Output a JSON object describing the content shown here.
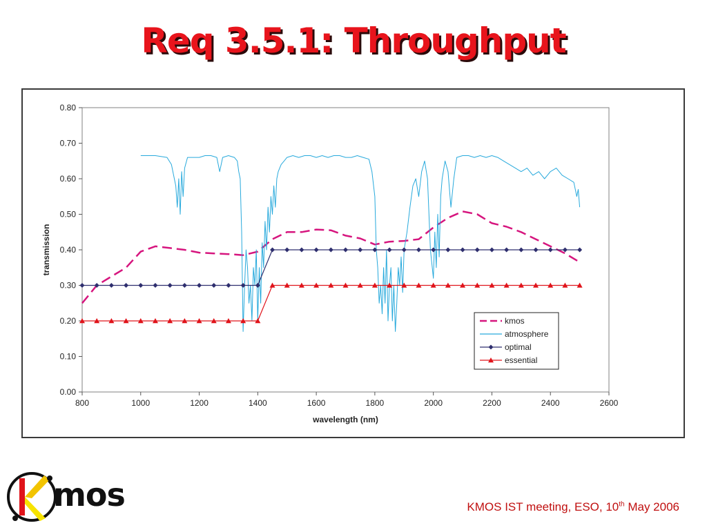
{
  "slide": {
    "title": "Req 3.5.1: Throughput",
    "footer_main": "KMOS IST meeting, ESO, 10",
    "footer_sup": "th",
    "footer_end": " May 2006",
    "logo_text": "mos",
    "logo_letter": "K"
  },
  "chart_data": {
    "type": "line",
    "xlabel": "wavelength (nm)",
    "ylabel": "transmission",
    "xlim": [
      800,
      2600
    ],
    "ylim": [
      0,
      0.8
    ],
    "xticks": [
      800,
      1000,
      1200,
      1400,
      1600,
      1800,
      2000,
      2200,
      2400,
      2600
    ],
    "yticks": [
      "0.00",
      "0.10",
      "0.20",
      "0.30",
      "0.40",
      "0.50",
      "0.60",
      "0.70",
      "0.80"
    ],
    "legend_position": "lower-right",
    "series": [
      {
        "name": "kmos",
        "color": "#d6157e",
        "style": "dashed",
        "x": [
          800,
          850,
          900,
          950,
          1000,
          1050,
          1100,
          1150,
          1200,
          1250,
          1300,
          1350,
          1400,
          1450,
          1500,
          1550,
          1600,
          1650,
          1700,
          1750,
          1800,
          1850,
          1900,
          1950,
          2000,
          2050,
          2100,
          2150,
          2200,
          2250,
          2300,
          2350,
          2400,
          2450,
          2500
        ],
        "y": [
          0.25,
          0.3,
          0.325,
          0.35,
          0.395,
          0.41,
          0.405,
          0.4,
          0.392,
          0.39,
          0.388,
          0.385,
          0.395,
          0.43,
          0.45,
          0.45,
          0.457,
          0.455,
          0.44,
          0.432,
          0.415,
          0.423,
          0.425,
          0.43,
          0.463,
          0.49,
          0.508,
          0.5,
          0.475,
          0.465,
          0.45,
          0.43,
          0.41,
          0.39,
          0.365
        ]
      },
      {
        "name": "atmosphere",
        "color": "#27a9dc",
        "style": "solid",
        "x": [
          1000,
          1050,
          1090,
          1105,
          1115,
          1120,
          1125,
          1130,
          1135,
          1140,
          1145,
          1150,
          1160,
          1180,
          1200,
          1220,
          1240,
          1260,
          1265,
          1270,
          1280,
          1300,
          1320,
          1330,
          1335,
          1340,
          1345,
          1350,
          1355,
          1360,
          1365,
          1370,
          1375,
          1380,
          1385,
          1390,
          1395,
          1400,
          1405,
          1410,
          1415,
          1420,
          1425,
          1430,
          1435,
          1440,
          1445,
          1450,
          1455,
          1460,
          1465,
          1470,
          1480,
          1490,
          1500,
          1520,
          1540,
          1560,
          1580,
          1600,
          1620,
          1640,
          1660,
          1680,
          1700,
          1720,
          1740,
          1760,
          1780,
          1790,
          1800,
          1805,
          1810,
          1815,
          1820,
          1825,
          1830,
          1835,
          1840,
          1845,
          1850,
          1855,
          1860,
          1865,
          1870,
          1875,
          1880,
          1885,
          1890,
          1895,
          1900,
          1910,
          1920,
          1930,
          1940,
          1950,
          1960,
          1970,
          1980,
          1990,
          2000,
          2005,
          2010,
          2015,
          2020,
          2025,
          2030,
          2040,
          2050,
          2060,
          2070,
          2080,
          2100,
          2120,
          2140,
          2160,
          2180,
          2200,
          2220,
          2240,
          2260,
          2280,
          2300,
          2320,
          2340,
          2360,
          2380,
          2400,
          2420,
          2440,
          2460,
          2480,
          2490,
          2495,
          2500
        ],
        "y": [
          0.665,
          0.665,
          0.66,
          0.64,
          0.6,
          0.58,
          0.52,
          0.6,
          0.5,
          0.62,
          0.55,
          0.63,
          0.66,
          0.66,
          0.66,
          0.665,
          0.665,
          0.66,
          0.64,
          0.62,
          0.66,
          0.665,
          0.66,
          0.65,
          0.62,
          0.6,
          0.45,
          0.17,
          0.3,
          0.4,
          0.35,
          0.25,
          0.3,
          0.2,
          0.35,
          0.3,
          0.4,
          0.2,
          0.35,
          0.25,
          0.42,
          0.35,
          0.48,
          0.4,
          0.52,
          0.45,
          0.55,
          0.5,
          0.58,
          0.52,
          0.6,
          0.62,
          0.64,
          0.65,
          0.66,
          0.665,
          0.66,
          0.665,
          0.665,
          0.66,
          0.665,
          0.66,
          0.665,
          0.665,
          0.66,
          0.66,
          0.665,
          0.66,
          0.655,
          0.62,
          0.55,
          0.4,
          0.35,
          0.25,
          0.3,
          0.22,
          0.35,
          0.25,
          0.4,
          0.2,
          0.3,
          0.35,
          0.2,
          0.3,
          0.17,
          0.25,
          0.35,
          0.3,
          0.38,
          0.28,
          0.4,
          0.45,
          0.52,
          0.58,
          0.6,
          0.55,
          0.62,
          0.65,
          0.6,
          0.4,
          0.32,
          0.45,
          0.35,
          0.5,
          0.38,
          0.55,
          0.6,
          0.65,
          0.62,
          0.52,
          0.6,
          0.66,
          0.665,
          0.665,
          0.66,
          0.665,
          0.66,
          0.665,
          0.66,
          0.65,
          0.64,
          0.63,
          0.62,
          0.63,
          0.61,
          0.62,
          0.6,
          0.62,
          0.63,
          0.61,
          0.6,
          0.59,
          0.55,
          0.57,
          0.52
        ]
      },
      {
        "name": "optimal",
        "color": "#2e2e6e",
        "style": "solid-diamond",
        "x": [
          800,
          850,
          900,
          950,
          1000,
          1050,
          1100,
          1150,
          1200,
          1250,
          1300,
          1350,
          1400,
          1450,
          1500,
          1550,
          1600,
          1650,
          1700,
          1750,
          1800,
          1850,
          1900,
          1950,
          2000,
          2050,
          2100,
          2150,
          2200,
          2250,
          2300,
          2350,
          2400,
          2450,
          2500
        ],
        "y": [
          0.3,
          0.3,
          0.3,
          0.3,
          0.3,
          0.3,
          0.3,
          0.3,
          0.3,
          0.3,
          0.3,
          0.3,
          0.3,
          0.4,
          0.4,
          0.4,
          0.4,
          0.4,
          0.4,
          0.4,
          0.4,
          0.4,
          0.4,
          0.4,
          0.4,
          0.4,
          0.4,
          0.4,
          0.4,
          0.4,
          0.4,
          0.4,
          0.4,
          0.4,
          0.4
        ]
      },
      {
        "name": "essential",
        "color": "#e0141b",
        "style": "solid-triangle",
        "x": [
          800,
          850,
          900,
          950,
          1000,
          1050,
          1100,
          1150,
          1200,
          1250,
          1300,
          1350,
          1400,
          1450,
          1500,
          1550,
          1600,
          1650,
          1700,
          1750,
          1800,
          1850,
          1900,
          1950,
          2000,
          2050,
          2100,
          2150,
          2200,
          2250,
          2300,
          2350,
          2400,
          2450,
          2500
        ],
        "y": [
          0.2,
          0.2,
          0.2,
          0.2,
          0.2,
          0.2,
          0.2,
          0.2,
          0.2,
          0.2,
          0.2,
          0.2,
          0.2,
          0.3,
          0.3,
          0.3,
          0.3,
          0.3,
          0.3,
          0.3,
          0.3,
          0.3,
          0.3,
          0.3,
          0.3,
          0.3,
          0.3,
          0.3,
          0.3,
          0.3,
          0.3,
          0.3,
          0.3,
          0.3,
          0.3
        ]
      }
    ]
  }
}
